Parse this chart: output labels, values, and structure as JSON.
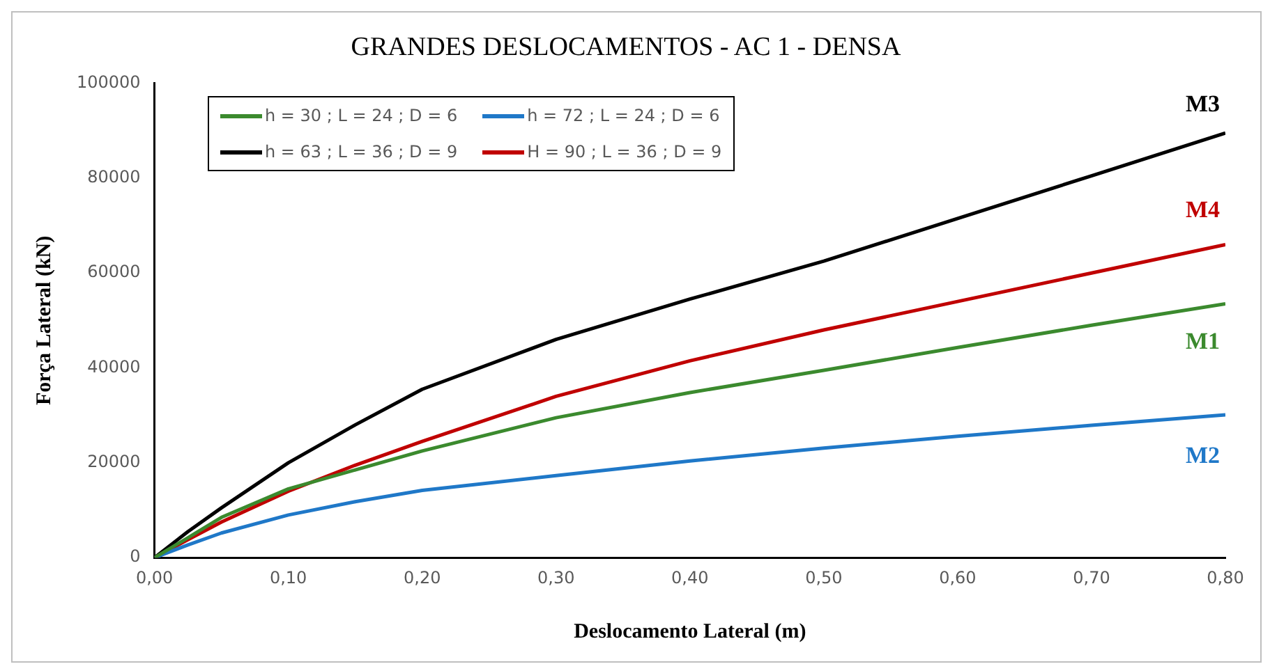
{
  "chart_data": {
    "type": "line",
    "title": "GRANDES DESLOCAMENTOS - AC 1 - DENSA",
    "xlabel": "Deslocamento Lateral (m)",
    "ylabel": "Força Lateral (kN)",
    "x": [
      0,
      0.025,
      0.05,
      0.1,
      0.15,
      0.2,
      0.3,
      0.4,
      0.5,
      0.6,
      0.7,
      0.8
    ],
    "series": [
      {
        "name": "h = 30 ; L = 24 ; D = 6",
        "color": "#3b8a2e",
        "values": [
          0,
          4200,
          8500,
          14500,
          18500,
          22500,
          29500,
          34800,
          39500,
          44300,
          49000,
          53500
        ]
      },
      {
        "name": "h = 72 ; L = 24 ; D = 6",
        "color": "#1f78c8",
        "values": [
          0,
          2700,
          5200,
          9000,
          11800,
          14200,
          17300,
          20400,
          23100,
          25600,
          27900,
          30100
        ]
      },
      {
        "name": "h = 63 ; L = 36 ; D = 9",
        "color": "#000000",
        "values": [
          0,
          5500,
          10500,
          20000,
          28000,
          35500,
          46000,
          54500,
          62500,
          71500,
          80500,
          89500
        ]
      },
      {
        "name": "H = 90 ; L = 36 ; D = 9",
        "color": "#c00000",
        "values": [
          0,
          3800,
          7500,
          14000,
          19500,
          24500,
          34000,
          41500,
          48000,
          54000,
          60000,
          66000
        ]
      }
    ],
    "annotations": [
      "M1",
      "M2",
      "M3",
      "M4"
    ],
    "xlim": [
      0,
      0.8
    ],
    "xticks": [
      {
        "value": 0,
        "label": "0,00"
      },
      {
        "value": 0.1,
        "label": "0,10"
      },
      {
        "value": 0.2,
        "label": "0,20"
      },
      {
        "value": 0.3,
        "label": "0,30"
      },
      {
        "value": 0.4,
        "label": "0,40"
      },
      {
        "value": 0.5,
        "label": "0,50"
      },
      {
        "value": 0.6,
        "label": "0,60"
      },
      {
        "value": 0.7,
        "label": "0,70"
      },
      {
        "value": 0.8,
        "label": "0,80"
      }
    ],
    "ylim": [
      0,
      100000
    ],
    "yticks": [
      0,
      20000,
      40000,
      60000,
      80000,
      100000
    ],
    "grid": false,
    "legend": "top left",
    "marker": "none",
    "line_style": "solid"
  }
}
